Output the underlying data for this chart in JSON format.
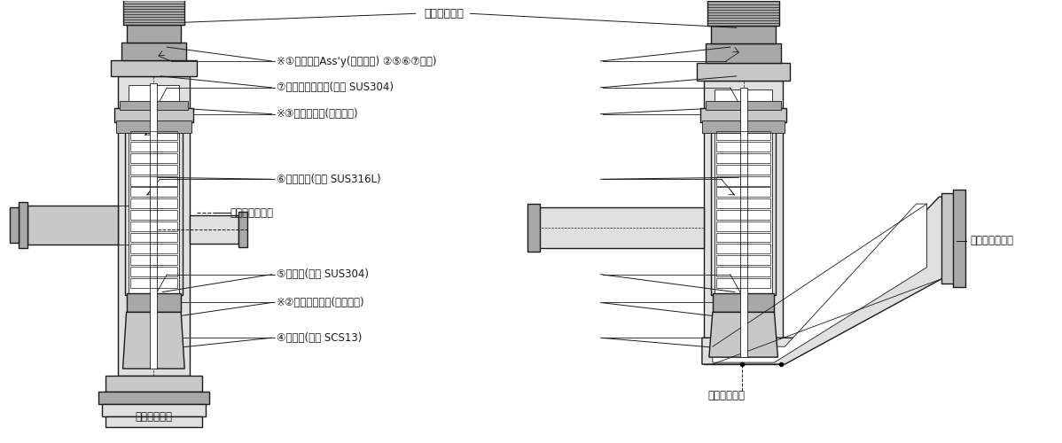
{
  "bg_color": "#ffffff",
  "lc": "#1a1a1a",
  "gf": "#c8c8c8",
  "gf2": "#a8a8a8",
  "gf3": "#e0e0e0",
  "figsize": [
    11.98,
    5.0
  ],
  "dpi": 100,
  "labels": {
    "indicator": "インジケータ",
    "handle": "※①ハンドルAss'y(保守部品) ②⑤⑥⑦含む)",
    "bellows_holder": "⑦ベローズホルダ(材質 SUS304)",
    "outer_seal": "※③外部シール(保守部品)",
    "bellows": "⑥ベローズ(材質 SUS316L)",
    "bellows_vent_left": "ベローズ側排気",
    "bellows_vent_right": "ベローズ側排気",
    "valve": "⑤バルブ(材質 SUS304)",
    "valve_seal": "※②バルブシール(保守部品)",
    "body": "④ボディ(材質 SCS13)",
    "valve_vent_left": "バルブ側排気",
    "valve_vent_right": "バルブ側排気"
  }
}
